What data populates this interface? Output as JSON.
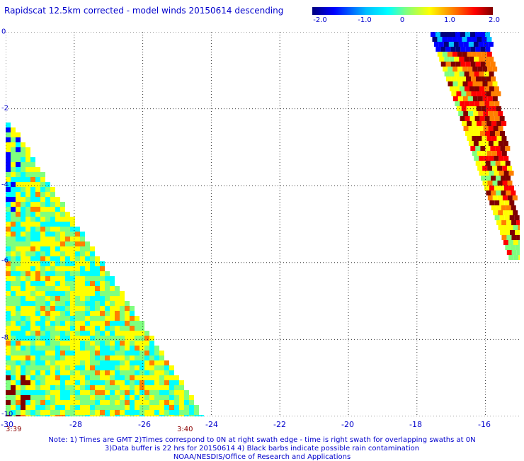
{
  "title": "Rapidscat 12.5km corrected - model winds 20150614 descending",
  "colorbar": {
    "ticks": [
      "-2.0",
      "-1.0",
      "0",
      "1.0",
      "2.0"
    ],
    "range": [
      -2.0,
      2.0
    ],
    "colors": [
      "#00007f",
      "#0000ff",
      "#00bfff",
      "#00ffff",
      "#7fff7f",
      "#ffff00",
      "#ff7f00",
      "#ff0000",
      "#7f0000"
    ]
  },
  "axes": {
    "x_ticks": [
      "-30",
      "-28",
      "-26",
      "-24",
      "-22",
      "-20",
      "-18",
      "-16"
    ],
    "y_ticks": [
      "0",
      "-2",
      "-4",
      "-6",
      "-8",
      "-10"
    ],
    "x_range": [
      -30,
      -15
    ],
    "y_range": [
      -10,
      0
    ],
    "grid": true,
    "grid_style": "dotted"
  },
  "times": {
    "left": "3:39",
    "right": "3:40"
  },
  "notes": [
    "Note: 1) Times are GMT 2)Times correspond to 0N at right swath edge - time is right swath for overlapping swaths at 0N",
    "3)Data buffer is 22 hrs for 20150614 4) Black barbs indicate possible rain contamination",
    "NOAA/NESDIS/Office of Research and Applications"
  ]
}
